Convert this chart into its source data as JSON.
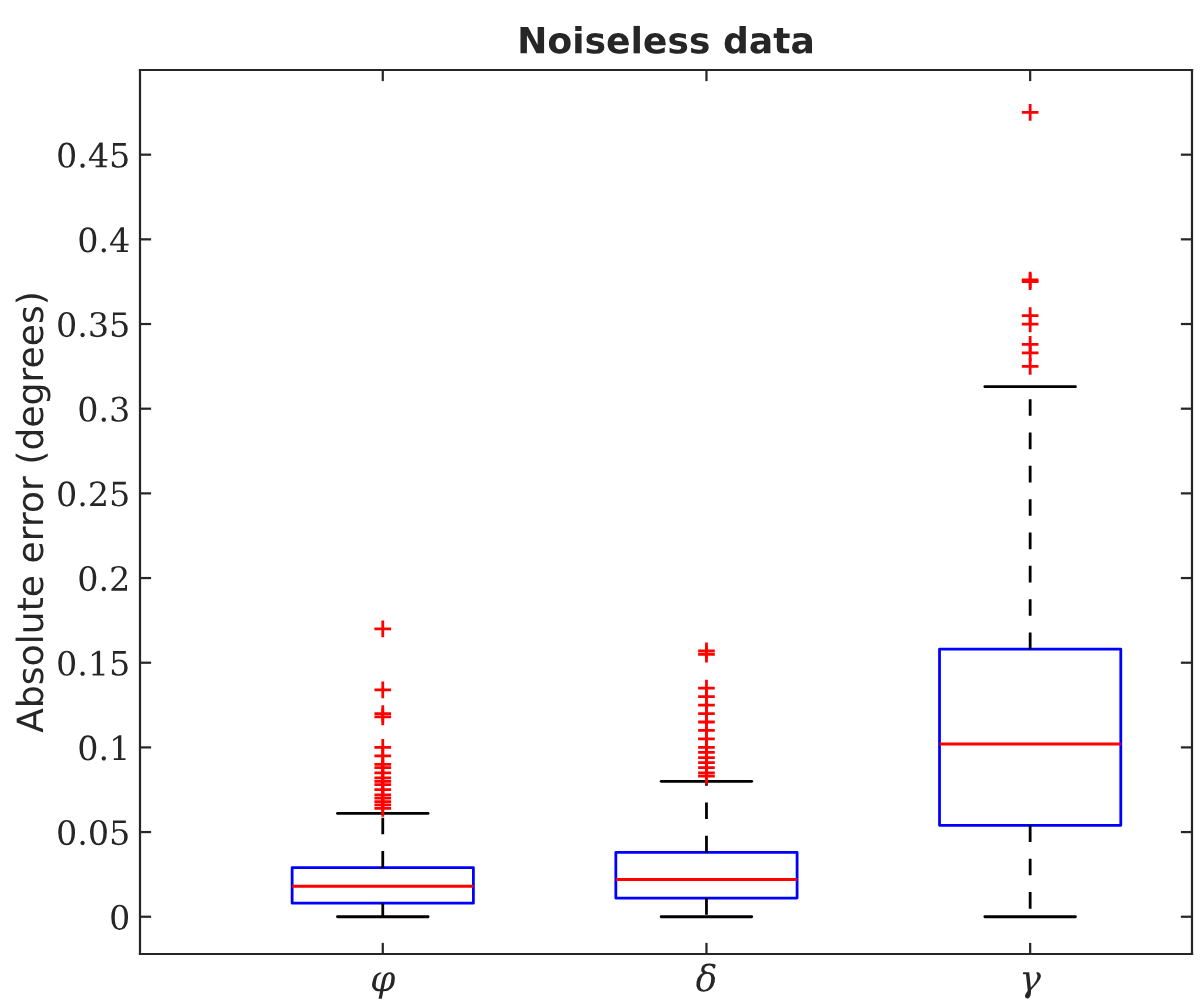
{
  "chart_data": {
    "type": "box",
    "title": "Noiseless data",
    "ylabel": "Absolute error (degrees)",
    "categories": [
      "φ",
      "δ",
      "γ"
    ],
    "boxes": [
      {
        "low": 0,
        "q1": 0.008,
        "median": 0.018,
        "q3": 0.029,
        "high": 0.061,
        "outliers": [
          0.17,
          0.134,
          0.12,
          0.118,
          0.1,
          0.095,
          0.09,
          0.088,
          0.085,
          0.082,
          0.08,
          0.078,
          0.075,
          0.072,
          0.07,
          0.068,
          0.066,
          0.064
        ]
      },
      {
        "low": 0,
        "q1": 0.011,
        "median": 0.022,
        "q3": 0.038,
        "high": 0.08,
        "outliers": [
          0.157,
          0.155,
          0.135,
          0.13,
          0.125,
          0.12,
          0.115,
          0.11,
          0.105,
          0.1,
          0.097,
          0.094,
          0.091,
          0.088,
          0.085,
          0.083
        ]
      },
      {
        "low": 0,
        "q1": 0.054,
        "median": 0.102,
        "q3": 0.158,
        "high": 0.313,
        "outliers": [
          0.475,
          0.376,
          0.375,
          0.355,
          0.35,
          0.338,
          0.333,
          0.325
        ]
      }
    ],
    "color": "#0000ff",
    "ylim": [
      -0.022,
      0.5
    ],
    "yticks": [
      0,
      0.05,
      0.1,
      0.15,
      0.2,
      0.25,
      0.3,
      0.35,
      0.4,
      0.45
    ],
    "grid": false
  }
}
